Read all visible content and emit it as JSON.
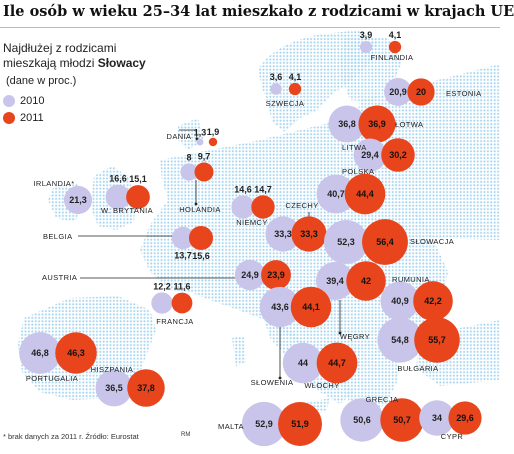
{
  "title": "Ile osób w wieku 25–34 lat mieszkało z rodzicami w krajach UE",
  "subtitle_line1": "Najdłużej z rodzicami",
  "subtitle_line2_prefix": "mieszkają młodzi ",
  "subtitle_line2_bold": "Słowacy",
  "unit": "(dane w proc.)",
  "footnote": "* brak danych za 2011 r.  Źródło: Eurostat",
  "credit": "RM",
  "colors": {
    "series_2010": "#c9c5ea",
    "series_2011": "#e8451c",
    "map_land": "#c9e6f6",
    "map_dots": "#b3dbf1"
  },
  "chart_data": {
    "type": "bubble-map",
    "title": "Ile osób w wieku 25–34 lat mieszkało z rodzicami w krajach UE",
    "unit": "(dane w proc.)",
    "series": [
      {
        "name": "2010",
        "color": "#c9c5ea"
      },
      {
        "name": "2011",
        "color": "#e8451c"
      }
    ],
    "countries": [
      {
        "name": "FINLANDIA",
        "v2010": "3,9",
        "v2011": "4,1"
      },
      {
        "name": "SZWECJA",
        "v2010": "3,6",
        "v2011": "4,1"
      },
      {
        "name": "ESTONIA",
        "v2010": "20,9",
        "v2011": "20"
      },
      {
        "name": "DANIA",
        "v2010": "1,3",
        "v2011": "1,9"
      },
      {
        "name": "ŁOTWA",
        "v2010": "36,8",
        "v2011": "36,9"
      },
      {
        "name": "LITWA",
        "v2010": "29,4",
        "v2011": "30,2"
      },
      {
        "name": "IRLANDIA*",
        "v2010": "21,3",
        "v2011": null
      },
      {
        "name": "W. BRYTANIA",
        "v2010": "16,6",
        "v2011": "15,1"
      },
      {
        "name": "HOLANDIA",
        "v2010": "8",
        "v2011": "9,7"
      },
      {
        "name": "POLSKA",
        "v2010": "40,7",
        "v2011": "44,4"
      },
      {
        "name": "NIEMCY",
        "v2010": "14,6",
        "v2011": "14,7"
      },
      {
        "name": "CZECHY",
        "v2010": "33,3",
        "v2011": "33,3"
      },
      {
        "name": "SŁOWACJA",
        "v2010": "52,3",
        "v2011": "56,4"
      },
      {
        "name": "BELGIA",
        "v2010": "13,7",
        "v2011": "15,6"
      },
      {
        "name": "AUSTRIA",
        "v2010": "24,9",
        "v2011": "23,9"
      },
      {
        "name": "RUMUNIA",
        "v2010": "40,9",
        "v2011": "42,2"
      },
      {
        "name": "FRANCJA",
        "v2010": "12,2",
        "v2011": "11,6"
      },
      {
        "name": "WĘGRY",
        "v2010": "39,4",
        "v2011": "42"
      },
      {
        "name": "SŁOWENIA",
        "v2010": "43,6",
        "v2011": "44,1"
      },
      {
        "name": "BUŁGARIA",
        "v2010": "54,8",
        "v2011": "55,7"
      },
      {
        "name": "PORTUGALIA",
        "v2010": "46,8",
        "v2011": "46,3"
      },
      {
        "name": "HISZPANIA",
        "v2010": "36,5",
        "v2011": "37,8"
      },
      {
        "name": "WŁOCHY",
        "v2010": "44",
        "v2011": "44,7"
      },
      {
        "name": "GRECJA",
        "v2010": "50,6",
        "v2011": "50,7"
      },
      {
        "name": "MALTA",
        "v2010": "52,9",
        "v2011": "51,9"
      },
      {
        "name": "CYPR",
        "v2010": "34",
        "v2011": "29,6"
      }
    ]
  }
}
